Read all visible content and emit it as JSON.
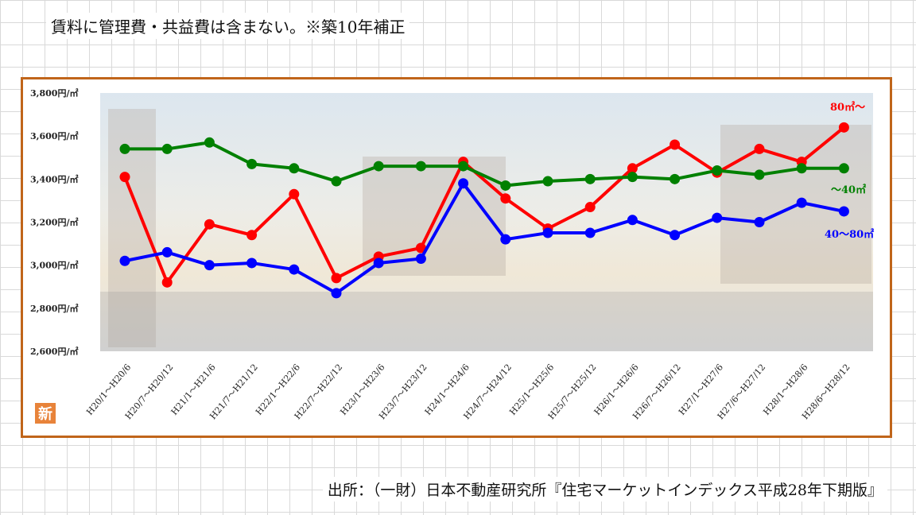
{
  "note": "賃料に管理費・共益費は含まない。※築10年補正",
  "source": "出所：（一財）日本不動産研究所『住宅マーケットインデックス平成28年下期版』",
  "logo_char": "新",
  "chart_data": {
    "type": "line",
    "title": "",
    "xlabel": "",
    "ylabel": "",
    "ylim": [
      2600,
      3800
    ],
    "y_ticks": [
      2600,
      2800,
      3000,
      3200,
      3400,
      3600,
      3800
    ],
    "y_tick_labels": [
      "2,600円/㎡",
      "2,800円/㎡",
      "3,000円/㎡",
      "3,200円/㎡",
      "3,400円/㎡",
      "3,600円/㎡",
      "3,800円/㎡"
    ],
    "grid": false,
    "categories": [
      "H20/1～H20/6",
      "H20/7～H20/12",
      "H21/1～H21/6",
      "H21/7～H21/12",
      "H22/1～H22/6",
      "H22/7～H22/12",
      "H23/1～H23/6",
      "H23/7～H23/12",
      "H24/1～H24/6",
      "H24/7～H24/12",
      "H25/1～H25/6",
      "H25/7～H25/12",
      "H26/1～H26/6",
      "H26/7～H26/12",
      "H27/1～H27/6",
      "H27/6～H27/12",
      "H28/1～H28/6",
      "H28/6～H28/12"
    ],
    "series": [
      {
        "name": "80㎡～",
        "color": "#ff0000",
        "values": [
          3410,
          2920,
          3190,
          3140,
          3330,
          2940,
          3040,
          3080,
          3480,
          3310,
          3170,
          3270,
          3450,
          3560,
          3430,
          3540,
          3480,
          3640
        ]
      },
      {
        "name": "～40㎡",
        "color": "#008000",
        "values": [
          3540,
          3540,
          3570,
          3470,
          3450,
          3390,
          3460,
          3460,
          3460,
          3370,
          3390,
          3400,
          3410,
          3400,
          3440,
          3420,
          3450,
          3450
        ]
      },
      {
        "name": "40～80㎡",
        "color": "#0000ff",
        "values": [
          3020,
          3060,
          3000,
          3010,
          2980,
          2870,
          3010,
          3030,
          3380,
          3120,
          3150,
          3150,
          3210,
          3140,
          3220,
          3200,
          3290,
          3250
        ]
      }
    ],
    "legend": "inline-right"
  }
}
